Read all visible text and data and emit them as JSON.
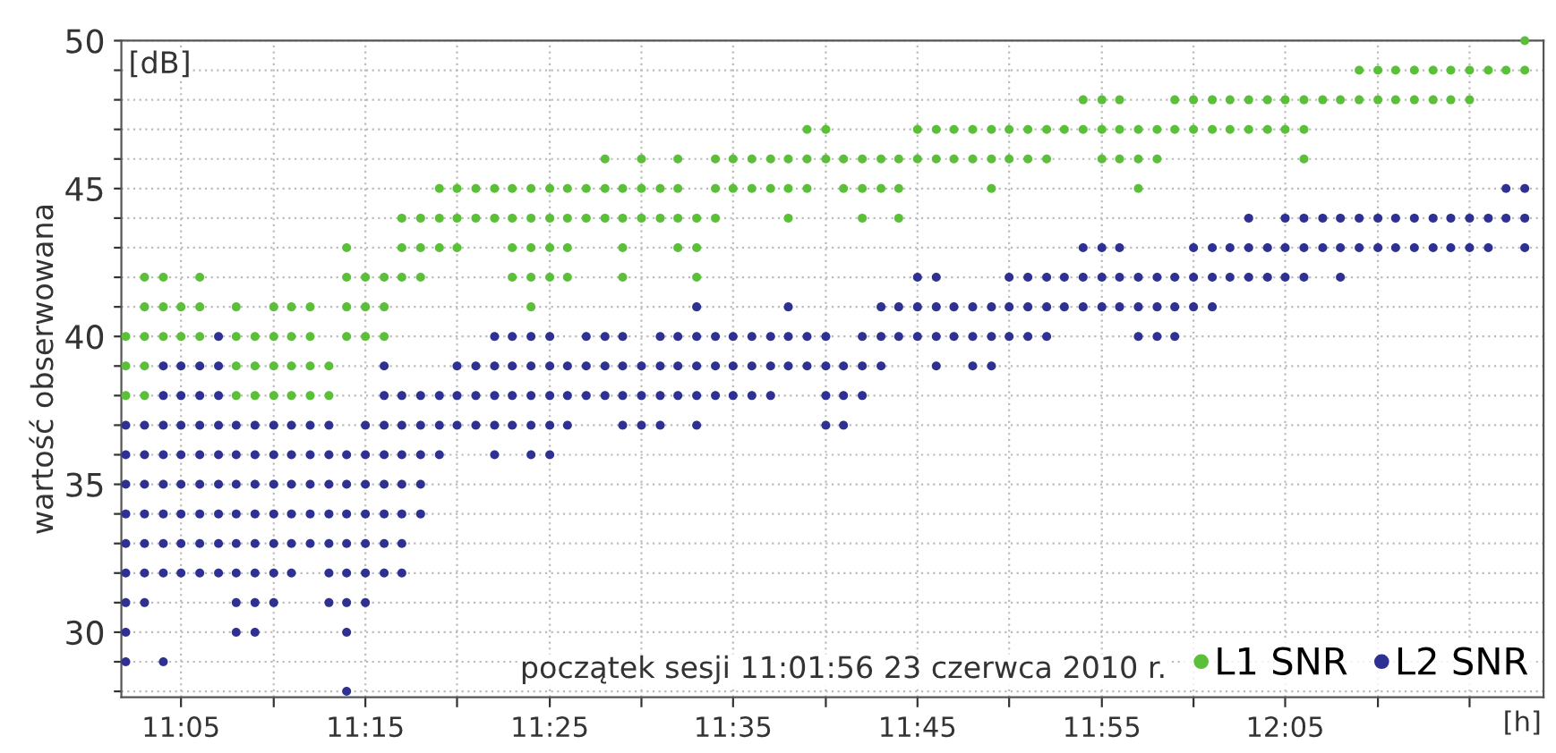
{
  "chart_data": {
    "type": "scatter",
    "xlabel": "[h]",
    "ylabel": "wartość obserwowana",
    "annotations": [
      "[dB]",
      "początek sesji 11:01:56 23 czerwca 2010 r."
    ],
    "xlim": [
      11.029,
      12.317
    ],
    "ylim": [
      27.8,
      50
    ],
    "xticks": [
      {
        "value": 11.083,
        "label": "11:05"
      },
      {
        "value": 11.167,
        "label": null
      },
      {
        "value": 11.25,
        "label": "11:15"
      },
      {
        "value": 11.333,
        "label": null
      },
      {
        "value": 11.417,
        "label": "11:25"
      },
      {
        "value": 11.5,
        "label": null
      },
      {
        "value": 11.583,
        "label": "11:35"
      },
      {
        "value": 11.667,
        "label": null
      },
      {
        "value": 11.75,
        "label": "11:45"
      },
      {
        "value": 11.833,
        "label": null
      },
      {
        "value": 11.917,
        "label": "11:55"
      },
      {
        "value": 12.0,
        "label": null
      },
      {
        "value": 12.083,
        "label": "12:05"
      },
      {
        "value": 12.167,
        "label": null
      },
      {
        "value": 12.25,
        "label": null
      }
    ],
    "yticks": [
      {
        "value": 28,
        "label": null
      },
      {
        "value": 29,
        "label": null
      },
      30,
      {
        "value": 31,
        "label": null
      },
      {
        "value": 32,
        "label": null
      },
      {
        "value": 33,
        "label": null
      },
      {
        "value": 34,
        "label": null
      },
      35,
      {
        "value": 36,
        "label": null
      },
      {
        "value": 37,
        "label": null
      },
      {
        "value": 38,
        "label": null
      },
      {
        "value": 39,
        "label": null
      },
      40,
      {
        "value": 41,
        "label": null
      },
      {
        "value": 42,
        "label": null
      },
      {
        "value": 43,
        "label": null
      },
      {
        "value": 44,
        "label": null
      },
      45,
      {
        "value": 46,
        "label": null
      },
      {
        "value": 47,
        "label": null
      },
      {
        "value": 48,
        "label": null
      },
      {
        "value": 49,
        "label": null
      },
      50
    ],
    "grid": true,
    "legend": "bottom right",
    "marker": "circle",
    "series": [
      {
        "name": "L1 SNR",
        "color": "#5cbf3a",
        "x": [
          11.033,
          11.05,
          11.133,
          11.15,
          11.167,
          11.183,
          11.2,
          11.217
        ],
        "values": [
          38,
          38,
          38,
          38,
          38,
          38,
          38,
          38
        ]
      },
      {
        "color": "#5cbf3a",
        "x": [
          11.033,
          11.05,
          11.133,
          11.15,
          11.167,
          11.183,
          11.2,
          11.217
        ],
        "values": [
          39,
          39,
          39,
          39,
          39,
          39,
          39,
          39
        ]
      },
      {
        "color": "#5cbf3a",
        "x": [
          11.033,
          11.05,
          11.067,
          11.083,
          11.1,
          11.133,
          11.15,
          11.167,
          11.183,
          11.2,
          11.233,
          11.25,
          11.267
        ],
        "values": [
          40,
          40,
          40,
          40,
          40,
          40,
          40,
          40,
          40,
          40,
          40,
          40,
          40
        ]
      },
      {
        "color": "#5cbf3a",
        "x": [
          11.05,
          11.067,
          11.083,
          11.1,
          11.133,
          11.167,
          11.183,
          11.2,
          11.233,
          11.25,
          11.267,
          11.4
        ],
        "values": [
          41,
          41,
          41,
          41,
          41,
          41,
          41,
          41,
          41,
          41,
          41,
          41
        ]
      },
      {
        "color": "#5cbf3a",
        "x": [
          11.05,
          11.067,
          11.1,
          11.233,
          11.25,
          11.267,
          11.283,
          11.3,
          11.383,
          11.4,
          11.417,
          11.433,
          11.483,
          11.55
        ],
        "values": [
          42,
          42,
          42,
          42,
          42,
          42,
          42,
          42,
          42,
          42,
          42,
          42,
          42,
          42
        ]
      },
      {
        "color": "#5cbf3a",
        "x": [
          11.233,
          11.283,
          11.3,
          11.317,
          11.333,
          11.383,
          11.4,
          11.417,
          11.433,
          11.483,
          11.533,
          11.55
        ],
        "values": [
          43,
          43,
          43,
          43,
          43,
          43,
          43,
          43,
          43,
          43,
          43,
          43
        ]
      },
      {
        "color": "#5cbf3a",
        "x": [
          11.283,
          11.3,
          11.317,
          11.333,
          11.35,
          11.367,
          11.383,
          11.4,
          11.417,
          11.433,
          11.45,
          11.467,
          11.483,
          11.5,
          11.517,
          11.533,
          11.55,
          11.567,
          11.633,
          11.7,
          11.733
        ],
        "values": [
          44,
          44,
          44,
          44,
          44,
          44,
          44,
          44,
          44,
          44,
          44,
          44,
          44,
          44,
          44,
          44,
          44,
          44,
          44,
          44,
          44
        ]
      },
      {
        "color": "#5cbf3a",
        "x": [
          11.317,
          11.333,
          11.35,
          11.367,
          11.383,
          11.4,
          11.417,
          11.433,
          11.45,
          11.467,
          11.483,
          11.5,
          11.517,
          11.533,
          11.567,
          11.583,
          11.6,
          11.617,
          11.633,
          11.65,
          11.683,
          11.7,
          11.717,
          11.733,
          11.817,
          11.95
        ],
        "values": [
          45,
          45,
          45,
          45,
          45,
          45,
          45,
          45,
          45,
          45,
          45,
          45,
          45,
          45,
          45,
          45,
          45,
          45,
          45,
          45,
          45,
          45,
          45,
          45,
          45,
          45
        ]
      },
      {
        "color": "#5cbf3a",
        "x": [
          11.467,
          11.5,
          11.533,
          11.567,
          11.583,
          11.6,
          11.617,
          11.633,
          11.65,
          11.667,
          11.683,
          11.7,
          11.717,
          11.733,
          11.75,
          11.767,
          11.783,
          11.8,
          11.817,
          11.833,
          11.85,
          11.867,
          11.917,
          11.933,
          11.95,
          11.967,
          12.1
        ],
        "values": [
          46,
          46,
          46,
          46,
          46,
          46,
          46,
          46,
          46,
          46,
          46,
          46,
          46,
          46,
          46,
          46,
          46,
          46,
          46,
          46,
          46,
          46,
          46,
          46,
          46,
          46,
          46
        ]
      },
      {
        "color": "#5cbf3a",
        "x": [
          11.65,
          11.667,
          11.75,
          11.767,
          11.783,
          11.8,
          11.817,
          11.833,
          11.85,
          11.867,
          11.883,
          11.9,
          11.917,
          11.933,
          11.95,
          11.967,
          11.983,
          12.0,
          12.017,
          12.033,
          12.05,
          12.067,
          12.083,
          12.1
        ],
        "values": [
          47,
          47,
          47,
          47,
          47,
          47,
          47,
          47,
          47,
          47,
          47,
          47,
          47,
          47,
          47,
          47,
          47,
          47,
          47,
          47,
          47,
          47,
          47,
          47
        ]
      },
      {
        "color": "#5cbf3a",
        "x": [
          11.9,
          11.917,
          11.933,
          11.983,
          12.0,
          12.017,
          12.033,
          12.05,
          12.067,
          12.083,
          12.1,
          12.117,
          12.133,
          12.15,
          12.167,
          12.183,
          12.2,
          12.217,
          12.233,
          12.25
        ],
        "values": [
          48,
          48,
          48,
          48,
          48,
          48,
          48,
          48,
          48,
          48,
          48,
          48,
          48,
          48,
          48,
          48,
          48,
          48,
          48,
          48
        ]
      },
      {
        "color": "#5cbf3a",
        "x": [
          12.15,
          12.167,
          12.183,
          12.2,
          12.217,
          12.233,
          12.25,
          12.267,
          12.283,
          12.3
        ],
        "values": [
          49,
          49,
          49,
          49,
          49,
          49,
          49,
          49,
          49,
          49
        ]
      },
      {
        "color": "#5cbf3a",
        "x": [
          12.3
        ],
        "values": [
          50
        ]
      },
      {
        "name": "L2 SNR",
        "color": "#2e3192",
        "x": [
          11.233
        ],
        "values": [
          28
        ]
      },
      {
        "color": "#2e3192",
        "x": [
          11.033,
          11.067
        ],
        "values": [
          29,
          29
        ]
      },
      {
        "color": "#2e3192",
        "x": [
          11.033,
          11.133,
          11.15,
          11.233
        ],
        "values": [
          30,
          30,
          30,
          30
        ]
      },
      {
        "color": "#2e3192",
        "x": [
          11.033,
          11.05,
          11.133,
          11.15,
          11.167,
          11.217,
          11.233,
          11.25
        ],
        "values": [
          31,
          31,
          31,
          31,
          31,
          31,
          31,
          31
        ]
      },
      {
        "color": "#2e3192",
        "x": [
          11.033,
          11.05,
          11.067,
          11.083,
          11.1,
          11.117,
          11.133,
          11.15,
          11.167,
          11.183,
          11.217,
          11.233,
          11.25,
          11.267,
          11.283
        ],
        "values": [
          32,
          32,
          32,
          32,
          32,
          32,
          32,
          32,
          32,
          32,
          32,
          32,
          32,
          32,
          32
        ]
      },
      {
        "color": "#2e3192",
        "x": [
          11.033,
          11.05,
          11.067,
          11.083,
          11.1,
          11.117,
          11.133,
          11.15,
          11.167,
          11.183,
          11.2,
          11.217,
          11.233,
          11.25,
          11.267,
          11.283
        ],
        "values": [
          33,
          33,
          33,
          33,
          33,
          33,
          33,
          33,
          33,
          33,
          33,
          33,
          33,
          33,
          33,
          33
        ]
      },
      {
        "color": "#2e3192",
        "x": [
          11.033,
          11.05,
          11.067,
          11.083,
          11.1,
          11.117,
          11.133,
          11.15,
          11.167,
          11.183,
          11.2,
          11.217,
          11.233,
          11.25,
          11.267,
          11.283,
          11.3
        ],
        "values": [
          34,
          34,
          34,
          34,
          34,
          34,
          34,
          34,
          34,
          34,
          34,
          34,
          34,
          34,
          34,
          34,
          34
        ]
      },
      {
        "color": "#2e3192",
        "x": [
          11.033,
          11.05,
          11.067,
          11.083,
          11.1,
          11.117,
          11.133,
          11.15,
          11.167,
          11.183,
          11.2,
          11.217,
          11.233,
          11.25,
          11.267,
          11.283,
          11.3
        ],
        "values": [
          35,
          35,
          35,
          35,
          35,
          35,
          35,
          35,
          35,
          35,
          35,
          35,
          35,
          35,
          35,
          35,
          35
        ]
      },
      {
        "color": "#2e3192",
        "x": [
          11.033,
          11.05,
          11.067,
          11.083,
          11.1,
          11.117,
          11.133,
          11.15,
          11.167,
          11.183,
          11.2,
          11.217,
          11.233,
          11.25,
          11.267,
          11.283,
          11.3,
          11.317,
          11.367,
          11.4,
          11.417
        ],
        "values": [
          36,
          36,
          36,
          36,
          36,
          36,
          36,
          36,
          36,
          36,
          36,
          36,
          36,
          36,
          36,
          36,
          36,
          36,
          36,
          36,
          36
        ]
      },
      {
        "color": "#2e3192",
        "x": [
          11.033,
          11.05,
          11.067,
          11.083,
          11.1,
          11.117,
          11.133,
          11.15,
          11.167,
          11.183,
          11.2,
          11.217,
          11.25,
          11.267,
          11.283,
          11.3,
          11.317,
          11.333,
          11.35,
          11.367,
          11.383,
          11.4,
          11.417,
          11.433,
          11.483,
          11.5,
          11.517,
          11.55,
          11.667,
          11.683
        ],
        "values": [
          37,
          37,
          37,
          37,
          37,
          37,
          37,
          37,
          37,
          37,
          37,
          37,
          37,
          37,
          37,
          37,
          37,
          37,
          37,
          37,
          37,
          37,
          37,
          37,
          37,
          37,
          37,
          37,
          37,
          37
        ]
      },
      {
        "color": "#2e3192",
        "x": [
          11.067,
          11.083,
          11.1,
          11.117,
          11.267,
          11.283,
          11.3,
          11.317,
          11.333,
          11.35,
          11.367,
          11.383,
          11.4,
          11.417,
          11.433,
          11.45,
          11.467,
          11.483,
          11.5,
          11.517,
          11.533,
          11.55,
          11.567,
          11.583,
          11.6,
          11.617,
          11.667,
          11.683,
          11.7
        ],
        "values": [
          38,
          38,
          38,
          38,
          38,
          38,
          38,
          38,
          38,
          38,
          38,
          38,
          38,
          38,
          38,
          38,
          38,
          38,
          38,
          38,
          38,
          38,
          38,
          38,
          38,
          38,
          38,
          38,
          38
        ]
      },
      {
        "color": "#2e3192",
        "x": [
          11.067,
          11.083,
          11.1,
          11.117,
          11.267,
          11.333,
          11.35,
          11.367,
          11.383,
          11.4,
          11.417,
          11.433,
          11.45,
          11.467,
          11.483,
          11.5,
          11.517,
          11.533,
          11.55,
          11.567,
          11.583,
          11.6,
          11.617,
          11.633,
          11.65,
          11.667,
          11.683,
          11.7,
          11.717,
          11.767,
          11.8,
          11.817
        ],
        "values": [
          39,
          39,
          39,
          39,
          39,
          39,
          39,
          39,
          39,
          39,
          39,
          39,
          39,
          39,
          39,
          39,
          39,
          39,
          39,
          39,
          39,
          39,
          39,
          39,
          39,
          39,
          39,
          39,
          39,
          39,
          39,
          39
        ]
      },
      {
        "color": "#2e3192",
        "x": [
          11.117,
          11.367,
          11.383,
          11.4,
          11.417,
          11.45,
          11.467,
          11.483,
          11.517,
          11.533,
          11.55,
          11.567,
          11.583,
          11.6,
          11.617,
          11.633,
          11.65,
          11.667,
          11.7,
          11.717,
          11.733,
          11.75,
          11.767,
          11.783,
          11.8,
          11.817,
          11.833,
          11.85,
          11.867,
          11.95,
          11.967,
          11.983
        ],
        "values": [
          40,
          40,
          40,
          40,
          40,
          40,
          40,
          40,
          40,
          40,
          40,
          40,
          40,
          40,
          40,
          40,
          40,
          40,
          40,
          40,
          40,
          40,
          40,
          40,
          40,
          40,
          40,
          40,
          40,
          40,
          40,
          40
        ]
      },
      {
        "color": "#2e3192",
        "x": [
          11.55,
          11.633,
          11.717,
          11.733,
          11.75,
          11.767,
          11.783,
          11.8,
          11.817,
          11.833,
          11.85,
          11.867,
          11.883,
          11.9,
          11.917,
          11.933,
          11.95,
          11.967,
          11.983,
          12.0,
          12.017
        ],
        "values": [
          41,
          41,
          41,
          41,
          41,
          41,
          41,
          41,
          41,
          41,
          41,
          41,
          41,
          41,
          41,
          41,
          41,
          41,
          41,
          41,
          41
        ]
      },
      {
        "color": "#2e3192",
        "x": [
          11.75,
          11.767,
          11.833,
          11.85,
          11.867,
          11.883,
          11.9,
          11.917,
          11.933,
          11.95,
          11.967,
          11.983,
          12.0,
          12.017,
          12.033,
          12.05,
          12.067,
          12.083,
          12.1,
          12.133
        ],
        "values": [
          42,
          42,
          42,
          42,
          42,
          42,
          42,
          42,
          42,
          42,
          42,
          42,
          42,
          42,
          42,
          42,
          42,
          42,
          42,
          42
        ]
      },
      {
        "color": "#2e3192",
        "x": [
          11.9,
          11.917,
          11.933,
          12.0,
          12.017,
          12.033,
          12.05,
          12.067,
          12.083,
          12.1,
          12.117,
          12.133,
          12.15,
          12.167,
          12.183,
          12.2,
          12.217,
          12.233,
          12.25,
          12.267,
          12.3
        ],
        "values": [
          43,
          43,
          43,
          43,
          43,
          43,
          43,
          43,
          43,
          43,
          43,
          43,
          43,
          43,
          43,
          43,
          43,
          43,
          43,
          43,
          43
        ]
      },
      {
        "color": "#2e3192",
        "x": [
          12.05,
          12.083,
          12.1,
          12.117,
          12.133,
          12.15,
          12.167,
          12.183,
          12.2,
          12.217,
          12.233,
          12.25,
          12.267,
          12.283,
          12.3
        ],
        "values": [
          44,
          44,
          44,
          44,
          44,
          44,
          44,
          44,
          44,
          44,
          44,
          44,
          44,
          44,
          44
        ]
      },
      {
        "color": "#2e3192",
        "x": [
          12.283,
          12.3
        ],
        "values": [
          45,
          45
        ]
      }
    ]
  }
}
